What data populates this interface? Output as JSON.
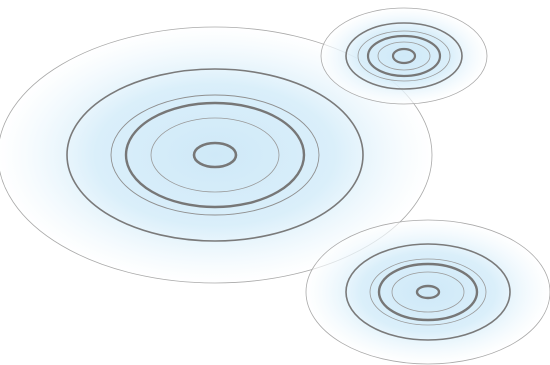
{
  "illustration": {
    "subject": "ripple rings",
    "glow_color": "#cfe9f8",
    "edge_color": "#ffffff",
    "ring_color": "#7a7a7a",
    "outline_color": "#a9a9a9",
    "ripples": [
      {
        "name": "large-ripple"
      },
      {
        "name": "top-right-ripple"
      },
      {
        "name": "bottom-right-ripple"
      }
    ]
  }
}
